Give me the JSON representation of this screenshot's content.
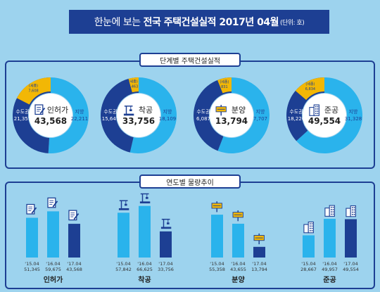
{
  "header": {
    "title_pre": "한눈에 보는",
    "title_bold": "전국 주택건설실적 2017년 04월",
    "title_unit": "(단위: 호)"
  },
  "sections": {
    "donut_title": "단계별 주택건설실적",
    "bar_title": "연도별 물량추이"
  },
  "colors": {
    "capital": "#1d3f93",
    "non_capital": "#2ab3ec",
    "sejong": "#f2b705",
    "highlight": "#1d3f93",
    "past_year": "#2ab3ec"
  },
  "chart_data": [
    {
      "type": "pie",
      "donuts": [
        {
          "stage": "인허가",
          "total": "43,568",
          "icon": "document-pen-icon",
          "slices": [
            {
              "label": "수도권",
              "value": 21357,
              "display": "21,357",
              "color": "#1d3f93"
            },
            {
              "label": "지방",
              "value": 22211,
              "display": "22,211",
              "color": "#2ab3ec"
            },
            {
              "label": "(세종)",
              "value": 7608,
              "display": "7,608",
              "color": "#f2b705"
            }
          ]
        },
        {
          "stage": "착공",
          "total": "33,756",
          "icon": "crane-icon",
          "slices": [
            {
              "label": "수도권",
              "value": 15647,
              "display": "15,647",
              "color": "#1d3f93"
            },
            {
              "label": "지방",
              "value": 18109,
              "display": "18,109",
              "color": "#2ab3ec"
            },
            {
              "label": "(세종)",
              "value": 1463,
              "display": "1,463",
              "color": "#f2b705"
            }
          ]
        },
        {
          "stage": "분양",
          "total": "13,794",
          "icon": "sale-sign-icon",
          "slices": [
            {
              "label": "수도권",
              "value": 6087,
              "display": "6,087",
              "color": "#1d3f93"
            },
            {
              "label": "지방",
              "value": 7707,
              "display": "7,707",
              "color": "#2ab3ec"
            },
            {
              "label": "(세종)",
              "value": 831,
              "display": "831",
              "color": "#f2b705"
            }
          ]
        },
        {
          "stage": "준공",
          "total": "49,554",
          "icon": "building-icon",
          "slices": [
            {
              "label": "수도권",
              "value": 18226,
              "display": "18,226",
              "color": "#1d3f93"
            },
            {
              "label": "지방",
              "value": 31328,
              "display": "31,328",
              "color": "#2ab3ec"
            },
            {
              "label": "(세종)",
              "value": 6834,
              "display": "6,834",
              "color": "#f2b705"
            }
          ]
        }
      ]
    },
    {
      "type": "bar",
      "ylim": [
        0,
        70000
      ],
      "groups": [
        {
          "name": "인허가",
          "icon": "document-pen-icon",
          "bars": [
            {
              "period": "'15.04",
              "value": 51345,
              "display": "51,345"
            },
            {
              "period": "'16.04",
              "value": 59675,
              "display": "59,675"
            },
            {
              "period": "'17.04",
              "value": 43568,
              "display": "43,568"
            }
          ]
        },
        {
          "name": "착공",
          "icon": "crane-icon",
          "bars": [
            {
              "period": "'15.04",
              "value": 57842,
              "display": "57,842"
            },
            {
              "period": "'16.04",
              "value": 66625,
              "display": "66,625"
            },
            {
              "period": "'17.04",
              "value": 33756,
              "display": "33,756"
            }
          ]
        },
        {
          "name": "분양",
          "icon": "sale-sign-icon",
          "bars": [
            {
              "period": "'15.04",
              "value": 55358,
              "display": "55,358"
            },
            {
              "period": "'16.04",
              "value": 43655,
              "display": "43,655"
            },
            {
              "period": "'17.04",
              "value": 13794,
              "display": "13,794"
            }
          ]
        },
        {
          "name": "준공",
          "icon": "building-icon",
          "bars": [
            {
              "period": "'15.04",
              "value": 28667,
              "display": "28,667"
            },
            {
              "period": "'16.04",
              "value": 49957,
              "display": "49,957"
            },
            {
              "period": "'17.04",
              "value": 49554,
              "display": "49,554"
            }
          ]
        }
      ]
    }
  ]
}
